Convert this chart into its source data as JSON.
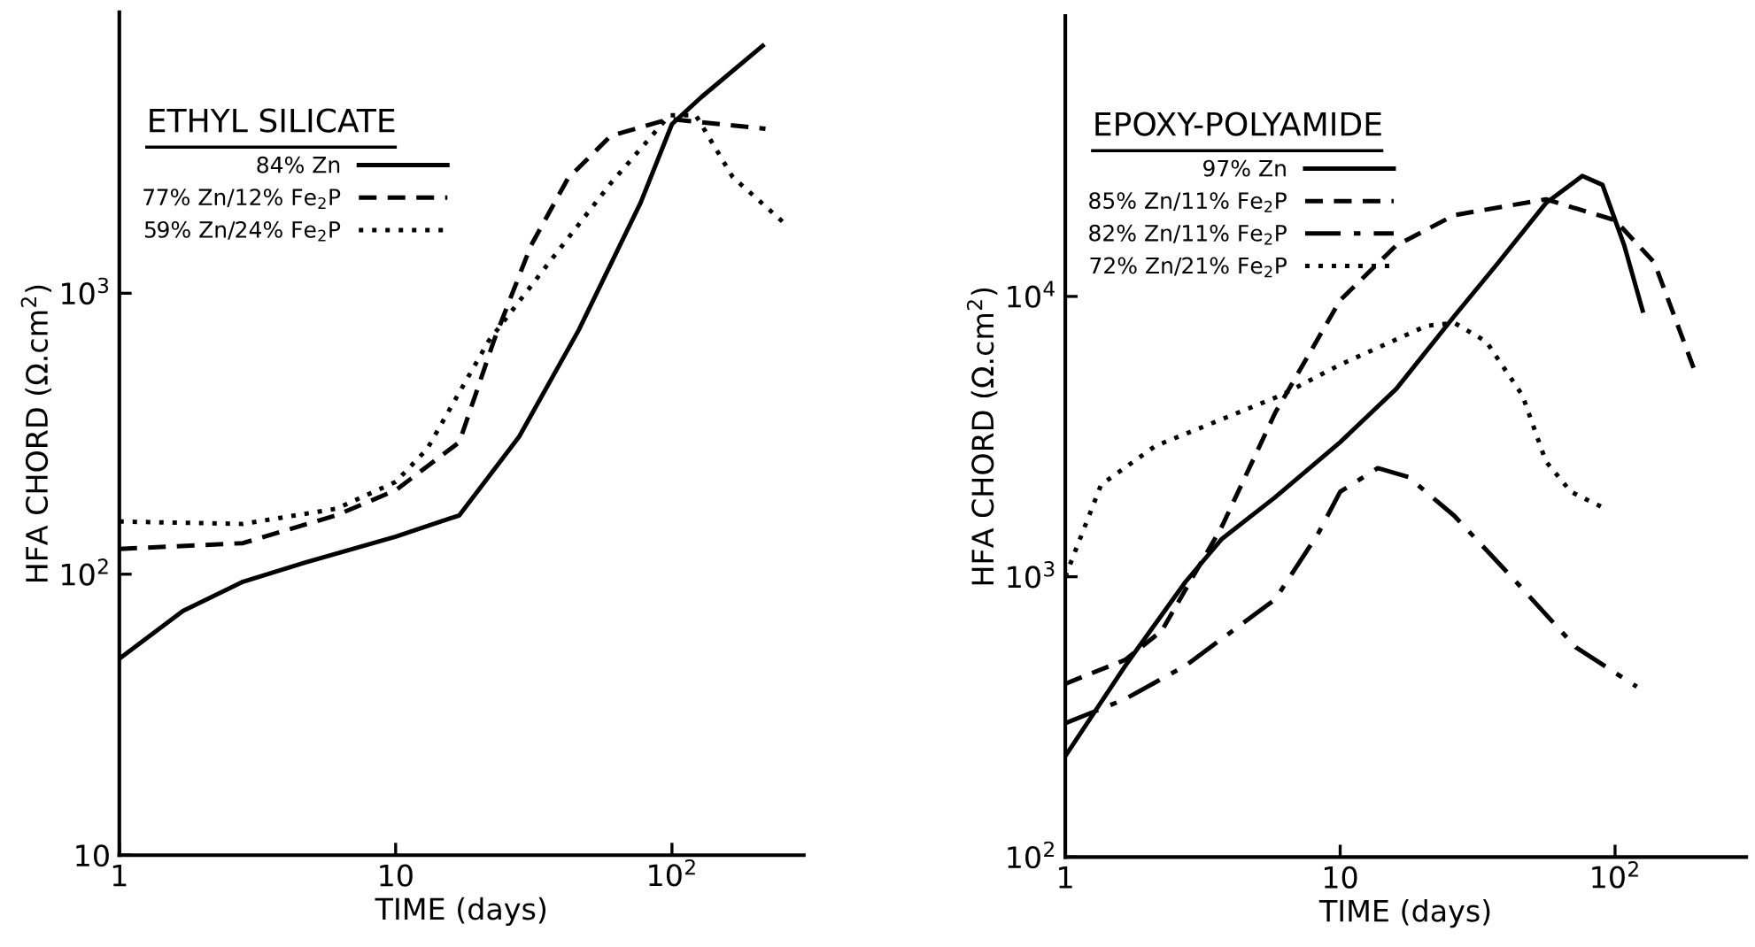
{
  "chart_data": [
    {
      "type": "line",
      "title": "ETHYL SILICATE",
      "xlabel": "TIME (days)",
      "ylabel": "HFA CHORD (Ω.cm$^{2}$)",
      "log": "xy",
      "grid": false,
      "legend": "top left",
      "xlim": [
        1,
        300
      ],
      "xticks": [
        1,
        10,
        {
          "value": 100,
          "label": "10$^{2}$"
        }
      ],
      "ylim": [
        10,
        10000
      ],
      "yticks": [
        10,
        {
          "value": 100,
          "label": "10$^{2}$"
        },
        {
          "value": 1000,
          "label": "10$^{3}$"
        }
      ],
      "series": [
        {
          "name": "84% Zn",
          "color": "#000000",
          "line_style": "solid",
          "x": [
            1,
            1.7,
            2.8,
            4.7,
            10,
            17,
            28,
            46,
            77,
            100,
            128,
            213
          ],
          "values": [
            50,
            74,
            94,
            110,
            136,
            162,
            309,
            740,
            2100,
            4000,
            5000,
            7600
          ]
        },
        {
          "name": "77% Zn/12% Fe$_{2}$P",
          "color": "#000000",
          "line_style": "dashed",
          "x": [
            1,
            2.8,
            6.1,
            10,
            17,
            22.7,
            30.9,
            42,
            60,
            98,
            218
          ],
          "values": [
            123,
            129,
            162,
            199,
            295,
            680,
            1480,
            2560,
            3630,
            4170,
            3850
          ]
        },
        {
          "name": "59% Zn/24% Fe$_{2}$P",
          "color": "#000000",
          "line_style": "dotted",
          "x": [
            1,
            2.8,
            6.1,
            10,
            13,
            21.7,
            36,
            60,
            98,
            122,
            166,
            261
          ],
          "values": [
            154,
            151,
            171,
            213,
            279,
            676,
            1290,
            2460,
            4300,
            4300,
            2590,
            1740
          ]
        }
      ]
    },
    {
      "type": "line",
      "title": "EPOXY-POLYAMIDE",
      "xlabel": "TIME (days)",
      "ylabel": "HFA CHORD (Ω.cm$^{2}$)",
      "log": "xy",
      "grid": false,
      "legend": "top left",
      "xlim": [
        1,
        300
      ],
      "xticks": [
        1,
        10,
        {
          "value": 100,
          "label": "10$^{2}$"
        }
      ],
      "ylim": [
        100,
        100000
      ],
      "yticks": [
        {
          "value": 100,
          "label": "10$^{2}$"
        },
        {
          "value": 1000,
          "label": "10$^{3}$"
        },
        {
          "value": 10000,
          "label": "10$^{4}$"
        }
      ],
      "series": [
        {
          "name": "97% Zn",
          "color": "#000000",
          "line_style": "solid",
          "x": [
            1,
            1.65,
            2.74,
            3.7,
            5.8,
            10,
            16,
            26,
            37.6,
            56,
            76,
            90,
            108,
            126
          ],
          "values": [
            229,
            480,
            960,
            1360,
            1920,
            3020,
            4680,
            8500,
            13200,
            21500,
            26900,
            25000,
            15200,
            8900
          ]
        },
        {
          "name": "85% Zn/11% Fe$_{2}$P",
          "color": "#000000",
          "line_style": "dashed",
          "x": [
            1,
            1.65,
            2.24,
            3.7,
            5.8,
            10,
            16,
            26,
            56,
            100,
            139,
            193
          ],
          "values": [
            415,
            505,
            640,
            1500,
            3840,
            9700,
            15200,
            19500,
            22200,
            18700,
            13200,
            5560
          ]
        },
        {
          "name": "82% Zn/11% Fe$_{2}$P",
          "color": "#000000",
          "line_style": "dashdot",
          "x": [
            1,
            1.65,
            2.74,
            5.8,
            8.3,
            10,
            13.7,
            17.7,
            26,
            43.6,
            72,
            120
          ],
          "values": [
            300,
            366,
            482,
            830,
            1420,
            2010,
            2440,
            2270,
            1650,
            960,
            560,
            405
          ]
        },
        {
          "name": "72% Zn/21% Fe$_{2}$P",
          "color": "#000000",
          "line_style": "dotted",
          "x": [
            1,
            1.35,
            2.13,
            3.7,
            6.1,
            10,
            20.6,
            26,
            34,
            46,
            56,
            69,
            93
          ],
          "values": [
            1000,
            2130,
            2930,
            3640,
            4440,
            5710,
            7850,
            8050,
            6900,
            4440,
            2580,
            2010,
            1740
          ]
        }
      ]
    }
  ]
}
